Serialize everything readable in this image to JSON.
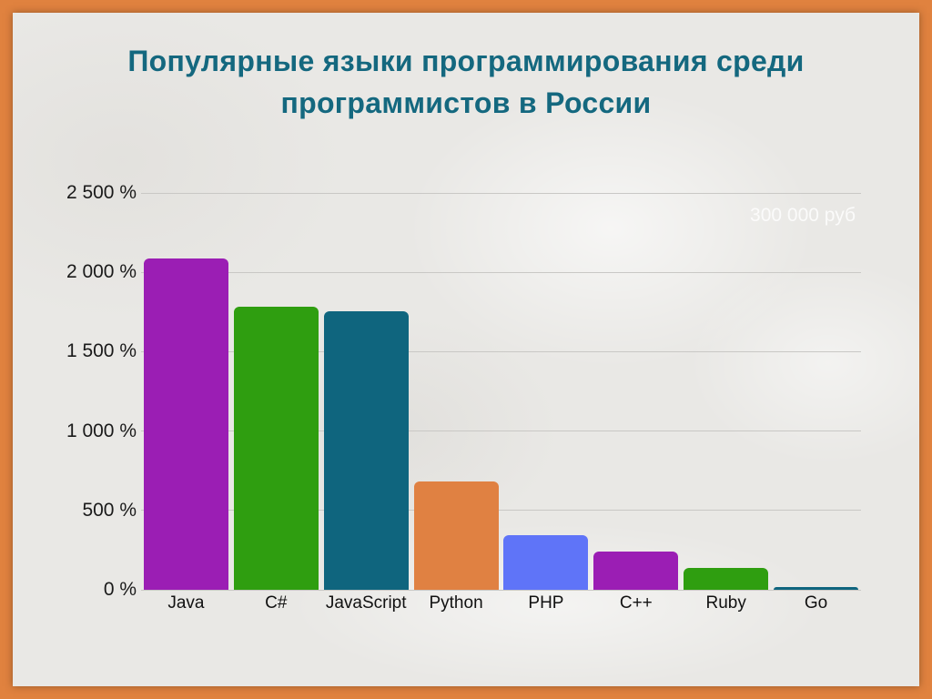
{
  "frame": {
    "border_color": "#e0823f",
    "panel_background": "#e9e8e5"
  },
  "title": {
    "lines": [
      "Популярные языки программирования среди",
      "программистов в России"
    ],
    "color": "#14687f"
  },
  "watermark": {
    "text": "300 000 руб"
  },
  "chart_data": {
    "type": "bar",
    "title": "Популярные языки программирования среди программистов в России",
    "categories": [
      "Java",
      "C#",
      "JavaScript",
      "Python",
      "PHP",
      "C++",
      "Ruby",
      "Go"
    ],
    "values": [
      2090,
      1785,
      1755,
      685,
      345,
      240,
      140,
      15
    ],
    "bar_colors": [
      "#9b1eb4",
      "#2f9e10",
      "#0f657e",
      "#e08142",
      "#5f74f8",
      "#9b1eb4",
      "#2f9e10",
      "#0f657e"
    ],
    "xlabel": "",
    "ylabel": "",
    "ylim": [
      0,
      2500
    ],
    "yticks": [
      {
        "value": 2500,
        "label": "2 500 %"
      },
      {
        "value": 2000,
        "label": "2 000 %"
      },
      {
        "value": 1500,
        "label": "1 500 %"
      },
      {
        "value": 1000,
        "label": "1 000 %"
      },
      {
        "value": 500,
        "label": "500 %"
      },
      {
        "value": 0,
        "label": "0 %"
      }
    ],
    "grid": true,
    "legend": false,
    "annotation": "300 000 руб"
  }
}
